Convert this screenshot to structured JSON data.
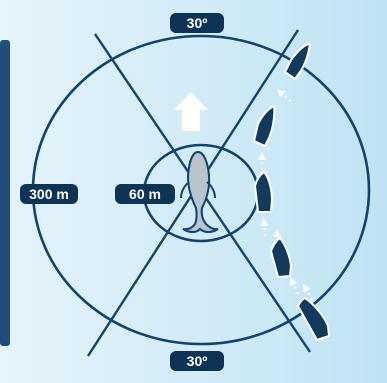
{
  "diagram": {
    "angle_top_label": "30º",
    "angle_bottom_label": "30º",
    "outer_radius_label": "300 m",
    "inner_radius_label": "60 m"
  },
  "colors": {
    "background_light": "#e3f3fb",
    "background_mid": "#c7e7f5",
    "ring": "#10446e",
    "label_bg": "#0e3455",
    "label_text": "#ffffff",
    "arrow": "#ffffff",
    "whale": "#b9c4cc",
    "boat": "#123a5c",
    "side_panel": "#1d4f7a"
  },
  "icons": [
    "whale-icon",
    "boat-icon",
    "direction-arrow-icon"
  ]
}
